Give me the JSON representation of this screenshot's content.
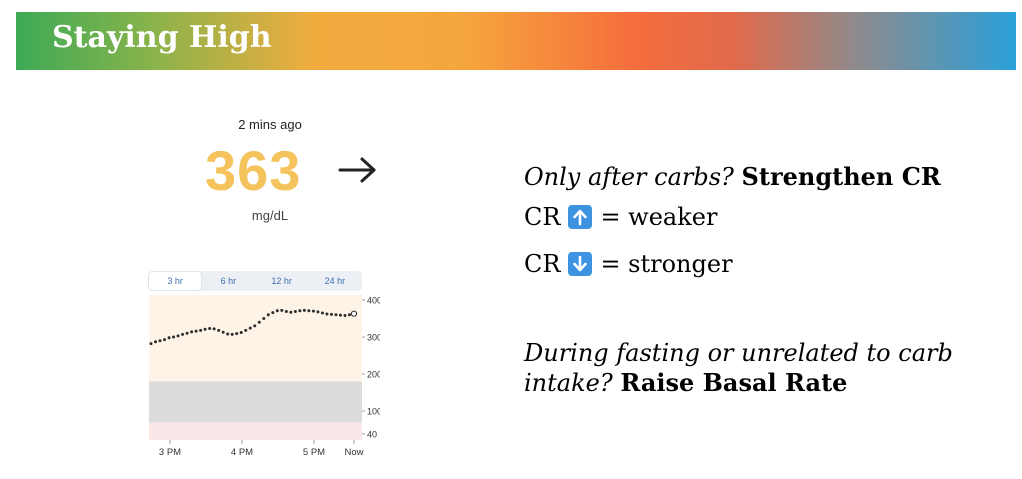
{
  "slide": {
    "title": "Staying High"
  },
  "cgm": {
    "time_ago": "2 mins ago",
    "value": "363",
    "units": "mg/dL",
    "trend": "arrow-right-icon",
    "value_color": "#f4c35c",
    "tabs": [
      {
        "label": "3 hr",
        "active": true
      },
      {
        "label": "6 hr",
        "active": false
      },
      {
        "label": "12 hr",
        "active": false
      },
      {
        "label": "24 hr",
        "active": false
      }
    ]
  },
  "chart_data": {
    "type": "scatter",
    "x_ticks": [
      "3 PM",
      "4 PM",
      "5 PM",
      "Now"
    ],
    "y_ticks": [
      "400",
      "300",
      "200",
      "100",
      "40"
    ],
    "ylim": [
      40,
      400
    ],
    "target_range": [
      180,
      70
    ],
    "colors": {
      "high_band": "#fdf3e7",
      "target_band": "#dcdcdc",
      "low_band": "#fbe6e8",
      "points": "#2d2d2d"
    },
    "values": [
      282,
      287,
      290,
      293,
      298,
      300,
      303,
      307,
      310,
      314,
      316,
      318,
      321,
      323,
      322,
      318,
      313,
      308,
      307,
      309,
      312,
      318,
      324,
      330,
      340,
      350,
      360,
      366,
      371,
      372,
      369,
      367,
      369,
      371,
      372,
      371,
      370,
      368,
      365,
      362,
      361,
      360,
      359,
      358,
      360,
      363
    ]
  },
  "notes": {
    "line1_italic": "Only after carbs?",
    "line1_bold": "Strengthen CR",
    "line2_prefix": "CR",
    "line2_icon": "up-arrow-key-icon",
    "line2_suffix": "= weaker",
    "line3_prefix": "CR",
    "line3_icon": "down-arrow-key-icon",
    "line3_suffix": "= stronger",
    "line4_italic": "During fasting or unrelated to carb intake?",
    "line4_bold": "Raise Basal Rate"
  }
}
